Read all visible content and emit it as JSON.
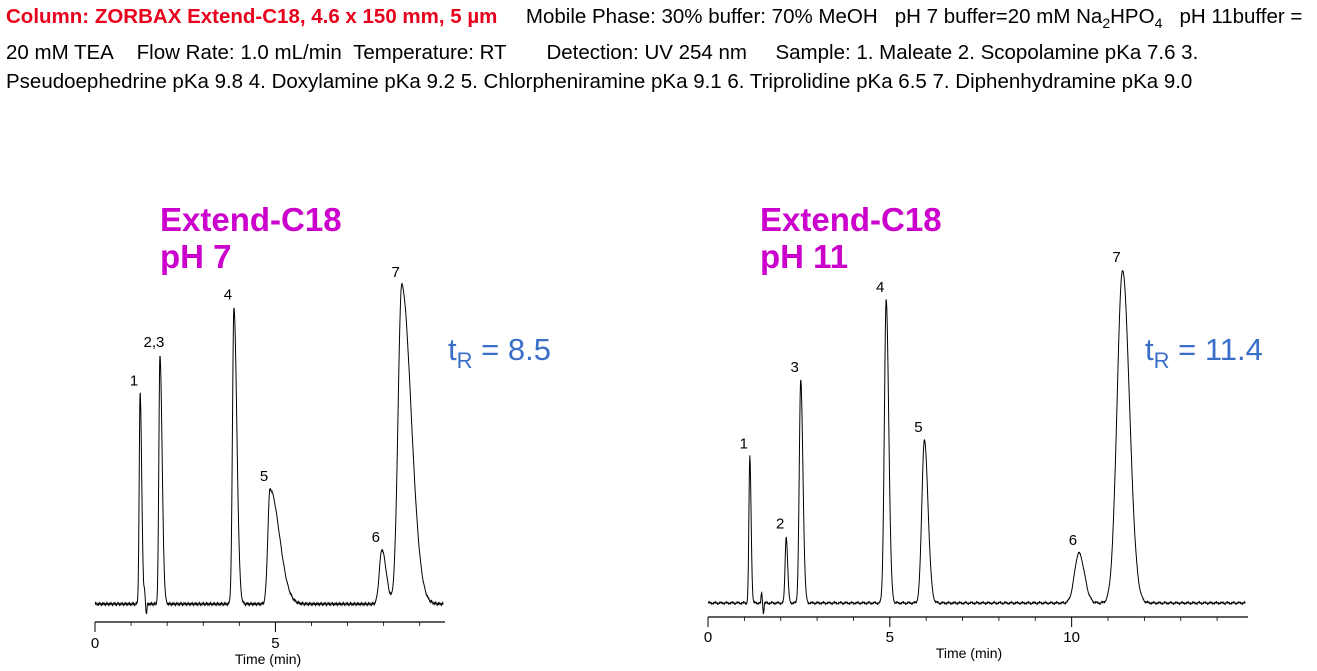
{
  "header": {
    "column_label": "Column:  ZORBAX Extend-C18, 4.6 x 150 mm, 5 µm",
    "mobile_phase": "Mobile Phase: 30% buffer: 70% MeOH",
    "ph7_buffer": "pH 7 buffer=20 mM",
    "buffer_salt_a": "Na",
    "buffer_salt_sub1": "2",
    "buffer_salt_b": "HPO",
    "buffer_salt_sub2": "4",
    "ph11_buffer": "pH 11buffer = 20 mM TEA",
    "flow_rate": "Flow Rate: 1.0 mL/min",
    "temperature": "Temperature:  RT",
    "detection": "Detection:  UV 254 nm",
    "sample": "Sample: 1. Maleate   2. Scopolamine pKa 7.6   3. Pseudoephedrine  pKa 9.8  4. Doxylamine  pKa 9.2  5. Chlorpheniramine pKa 9.1  6. Triprolidine pKa 6.5   7. Diphenhydramine pKa 9.0"
  },
  "panels": [
    {
      "title_line1": "Extend-C18",
      "title_line2": "pH 7",
      "tr_symbol": "t",
      "tr_sub": "R",
      "tr_value": " = 8.5"
    },
    {
      "title_line1": "Extend-C18",
      "title_line2": "pH 11",
      "tr_symbol": "t",
      "tr_sub": "R",
      "tr_value": " = 11.4"
    }
  ],
  "chart_data": [
    {
      "type": "line",
      "title": "Extend-C18 pH 7",
      "xlabel": "Time (min)",
      "ylabel": "",
      "xlim": [
        0,
        9.5
      ],
      "ylim": [
        0,
        100
      ],
      "x_ticks": [
        0,
        5
      ],
      "peaks": [
        {
          "label": "1",
          "t": 1.25,
          "height": 66,
          "width": 0.025,
          "tail": 0.02
        },
        {
          "label": "2,3",
          "t": 1.8,
          "height": 78,
          "width": 0.03,
          "tail": 0.03
        },
        {
          "label": "4",
          "t": 3.85,
          "height": 93,
          "width": 0.04,
          "tail": 0.04
        },
        {
          "label": "5",
          "t": 4.85,
          "height": 36,
          "width": 0.06,
          "tail": 0.2
        },
        {
          "label": "6",
          "t": 7.95,
          "height": 17,
          "width": 0.07,
          "tail": 0.05
        },
        {
          "label": "7",
          "t": 8.5,
          "height": 100,
          "width": 0.1,
          "tail": 0.16
        }
      ],
      "retention_time_last_peak": 8.5
    },
    {
      "type": "line",
      "title": "Extend-C18 pH 11",
      "xlabel": "Time (min)",
      "ylabel": "",
      "xlim": [
        0,
        15
      ],
      "ylim": [
        0,
        100
      ],
      "x_ticks": [
        0,
        5,
        10
      ],
      "peaks": [
        {
          "label": "1",
          "t": 1.15,
          "height": 44,
          "width": 0.025,
          "tail": 0.01
        },
        {
          "label": "2",
          "t": 2.15,
          "height": 20,
          "width": 0.03,
          "tail": 0.01
        },
        {
          "label": "3",
          "t": 2.55,
          "height": 67,
          "width": 0.04,
          "tail": 0.02
        },
        {
          "label": "4",
          "t": 4.9,
          "height": 91,
          "width": 0.05,
          "tail": 0.02
        },
        {
          "label": "5",
          "t": 5.95,
          "height": 49,
          "width": 0.07,
          "tail": 0.03
        },
        {
          "label": "6",
          "t": 10.2,
          "height": 15,
          "width": 0.12,
          "tail": 0.03
        },
        {
          "label": "7",
          "t": 11.4,
          "height": 100,
          "width": 0.15,
          "tail": 0.04
        }
      ],
      "retention_time_last_peak": 11.4
    }
  ]
}
